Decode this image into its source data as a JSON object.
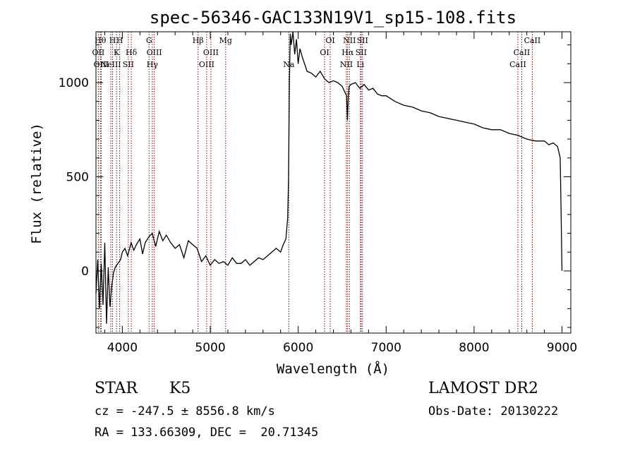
{
  "chart_data": {
    "type": "line",
    "title": "spec-56346-GAC133N19V1_sp15-108.fits",
    "xlabel": "Wavelength (Å)",
    "ylabel": "Flux (relative)",
    "xlim": [
      3700,
      9100
    ],
    "ylim": [
      -330,
      1270
    ],
    "xticks": [
      4000,
      5000,
      6000,
      7000,
      8000,
      9000
    ],
    "yticks": [
      0,
      500,
      1000
    ],
    "grid": false,
    "series": [
      {
        "x": [
          3700,
          3720,
          3740,
          3760,
          3780,
          3800,
          3820,
          3840,
          3860,
          3880,
          3900,
          3920,
          3950,
          3980,
          4000,
          4030,
          4060,
          4100,
          4130,
          4160,
          4200,
          4230,
          4260,
          4300,
          4340,
          4380,
          4420,
          4460,
          4500,
          4550,
          4600,
          4650,
          4700,
          4750,
          4800,
          4850,
          4900,
          4950,
          5000,
          5050,
          5100,
          5150,
          5200,
          5250,
          5300,
          5350,
          5400,
          5450,
          5500,
          5550,
          5600,
          5650,
          5700,
          5750,
          5800,
          5830,
          5860,
          5880,
          5890,
          5900,
          5910,
          5920,
          5940,
          5960,
          5980,
          6000,
          6020,
          6050,
          6080,
          6100,
          6150,
          6200,
          6250,
          6300,
          6350,
          6400,
          6450,
          6500,
          6530,
          6550,
          6560,
          6565,
          6570,
          6580,
          6600,
          6650,
          6700,
          6750,
          6800,
          6850,
          6900,
          6950,
          7000,
          7100,
          7200,
          7300,
          7400,
          7500,
          7600,
          7700,
          7800,
          7900,
          8000,
          8100,
          8200,
          8300,
          8400,
          8500,
          8600,
          8700,
          8800,
          8850,
          8900,
          8950,
          8980,
          8990,
          9000
        ],
        "y": [
          -120,
          60,
          -200,
          40,
          -180,
          150,
          -280,
          20,
          -190,
          -80,
          -10,
          20,
          40,
          60,
          100,
          120,
          80,
          150,
          110,
          140,
          170,
          90,
          150,
          180,
          200,
          130,
          210,
          160,
          190,
          150,
          120,
          140,
          70,
          160,
          140,
          120,
          50,
          80,
          30,
          60,
          40,
          50,
          30,
          70,
          40,
          40,
          60,
          30,
          50,
          70,
          60,
          80,
          100,
          120,
          100,
          140,
          170,
          280,
          480,
          1000,
          1260,
          1200,
          1270,
          1150,
          1230,
          1100,
          1180,
          1130,
          1090,
          1060,
          1050,
          1030,
          1060,
          1020,
          1000,
          1010,
          1000,
          980,
          950,
          930,
          800,
          870,
          930,
          980,
          990,
          1000,
          970,
          990,
          960,
          970,
          940,
          930,
          930,
          900,
          880,
          870,
          850,
          840,
          820,
          810,
          800,
          790,
          780,
          760,
          750,
          750,
          730,
          720,
          700,
          690,
          690,
          670,
          680,
          660,
          600,
          300,
          0
        ]
      }
    ],
    "lines": [
      {
        "x": 3727,
        "labels": [
          "OII"
        ],
        "rows": [
          2
        ]
      },
      {
        "x": 3750,
        "labels": [
          "Hθ"
        ],
        "rows": [
          1
        ]
      },
      {
        "x": 3760,
        "labels": [
          "OIII"
        ],
        "rows": [
          3
        ]
      },
      {
        "x": 3869,
        "labels": [
          "NeIII"
        ],
        "rows": [
          3
        ]
      },
      {
        "x": 3889,
        "labels": [
          "H"
        ],
        "rows": [
          1
        ]
      },
      {
        "x": 3934,
        "labels": [
          "K"
        ],
        "rows": [
          2
        ]
      },
      {
        "x": 3970,
        "labels": [
          "H"
        ],
        "rows": [
          1
        ]
      },
      {
        "x": 4068,
        "labels": [
          "SII"
        ],
        "rows": [
          3
        ]
      },
      {
        "x": 4102,
        "labels": [
          "Hδ"
        ],
        "rows": [
          2
        ]
      },
      {
        "x": 4304,
        "labels": [
          "G"
        ],
        "rows": [
          1
        ]
      },
      {
        "x": 4341,
        "labels": [
          "Hγ"
        ],
        "rows": [
          3
        ]
      },
      {
        "x": 4363,
        "labels": [
          "OIII"
        ],
        "rows": [
          2
        ]
      },
      {
        "x": 4861,
        "labels": [
          "Hβ"
        ],
        "rows": [
          1
        ]
      },
      {
        "x": 4959,
        "labels": [
          "OIII"
        ],
        "rows": [
          3
        ]
      },
      {
        "x": 5007,
        "labels": [
          "OIII"
        ],
        "rows": [
          2
        ]
      },
      {
        "x": 5175,
        "labels": [
          "Mg"
        ],
        "rows": [
          1
        ]
      },
      {
        "x": 5893,
        "labels": [
          "Na"
        ],
        "rows": [
          3
        ]
      },
      {
        "x": 6300,
        "labels": [
          "OI"
        ],
        "rows": [
          2
        ]
      },
      {
        "x": 6364,
        "labels": [
          "OI"
        ],
        "rows": [
          1
        ]
      },
      {
        "x": 6548,
        "labels": [
          "NII"
        ],
        "rows": [
          3
        ]
      },
      {
        "x": 6563,
        "labels": [
          "Hα"
        ],
        "rows": [
          2
        ]
      },
      {
        "x": 6583,
        "labels": [
          "NII"
        ],
        "rows": [
          1
        ]
      },
      {
        "x": 6707,
        "labels": [
          "Li"
        ],
        "rows": [
          3
        ]
      },
      {
        "x": 6716,
        "labels": [
          "SII"
        ],
        "rows": [
          2
        ]
      },
      {
        "x": 6731,
        "labels": [
          "SII"
        ],
        "rows": [
          1
        ]
      },
      {
        "x": 8498,
        "labels": [
          "CaII"
        ],
        "rows": [
          3
        ]
      },
      {
        "x": 8542,
        "labels": [
          "CaII"
        ],
        "rows": [
          2
        ]
      },
      {
        "x": 8662,
        "labels": [
          "CaII"
        ],
        "rows": [
          1
        ]
      }
    ],
    "line_color": "#000000",
    "marker_color": "#8b0000"
  },
  "footer": {
    "object_class": "STAR",
    "subclass": "K5",
    "survey": "LAMOST DR2",
    "redshift": "cz = -247.5 ± 8556.8 km/s",
    "obs_date": "Obs-Date: 20130222",
    "coords": "RA = 133.66309, DEC =  20.71345"
  }
}
